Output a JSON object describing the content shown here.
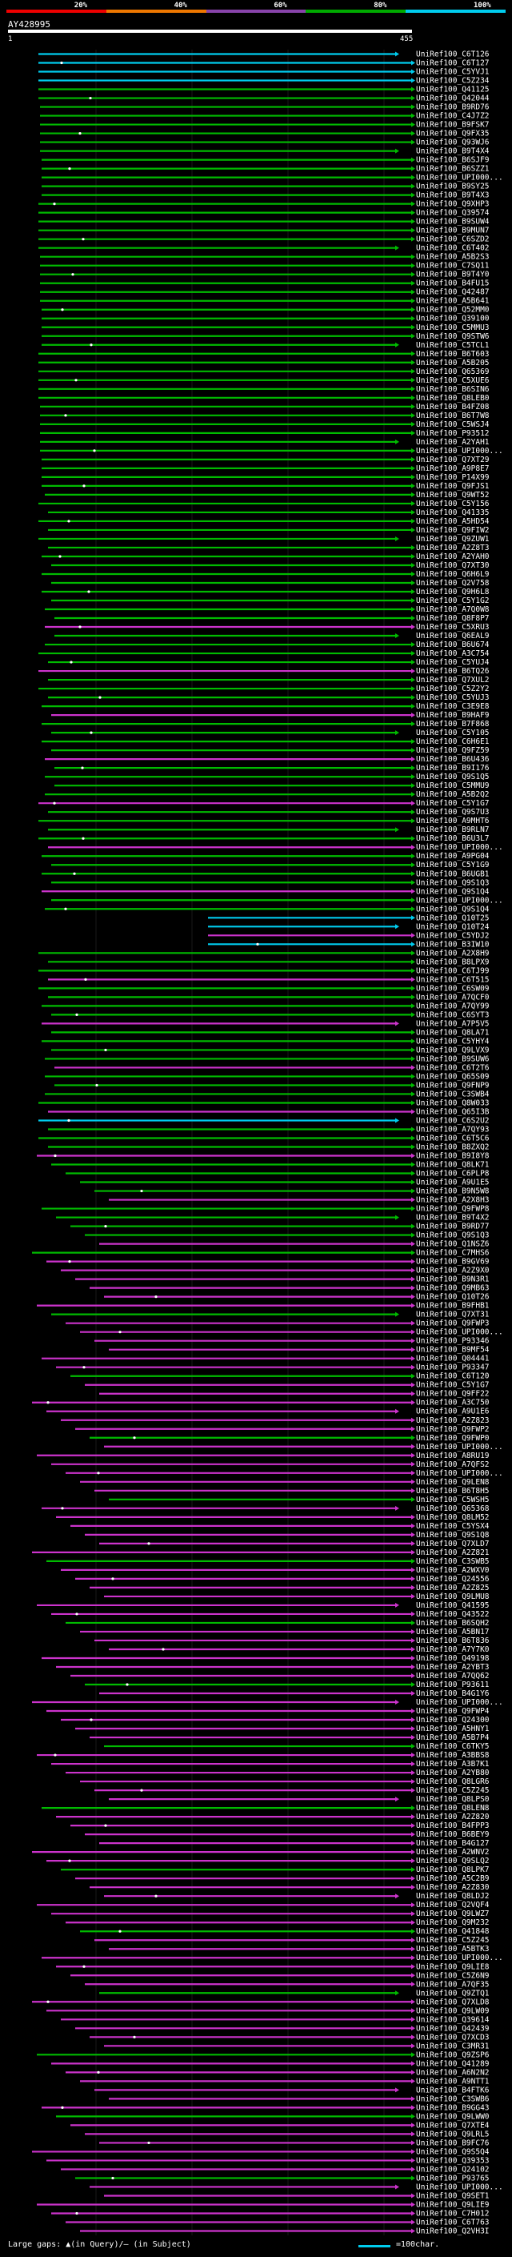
{
  "scale": {
    "labels": [
      "20%",
      "40%",
      "60%",
      "80%",
      "100%"
    ],
    "colors": [
      "#ee0000",
      "#ee7700",
      "#8844aa",
      "#00aa00",
      "#00ccee"
    ]
  },
  "query": {
    "id": "AY428995",
    "start": "1",
    "end": "455"
  },
  "legend": {
    "gaps_text": "Large gaps: ▲(in Query)/— (in Subject)",
    "scale_text": "=100char."
  },
  "colors": {
    "cyan": "#00ccee",
    "green": "#00bb00",
    "purple": "#cc33cc"
  },
  "hits": [
    "UniRef100_C6T126",
    "UniRef100_C6T127",
    "UniRef100_C5YVJ1",
    "UniRef100_C5Z234",
    "UniRef100_Q41125",
    "UniRef100_Q42044",
    "UniRef100_B9RD76",
    "UniRef100_C4J7Z2",
    "UniRef100_B9FSK7",
    "UniRef100_Q9FX35",
    "UniRef100_Q93WJ6",
    "UniRef100_B9T4X4",
    "UniRef100_B6SJF9",
    "UniRef100_B6SZZ1",
    "UniRef100_UPI000...",
    "UniRef100_B9SY25",
    "UniRef100_B9T4X3",
    "UniRef100_Q9XHP3",
    "UniRef100_Q39574",
    "UniRef100_B9SUW4",
    "UniRef100_B9MUN7",
    "UniRef100_C6SZD2",
    "UniRef100_C6T402",
    "UniRef100_A5B2S3",
    "UniRef100_C7SQ11",
    "UniRef100_B9T4Y0",
    "UniRef100_B4FU15",
    "UniRef100_Q42487",
    "UniRef100_A5B641",
    "UniRef100_Q52MM0",
    "UniRef100_Q39100",
    "UniRef100_C5MMU3",
    "UniRef100_Q9STW6",
    "UniRef100_C5TCL1",
    "UniRef100_B6T603",
    "UniRef100_A5B205",
    "UniRef100_Q65369",
    "UniRef100_C5XUE6",
    "UniRef100_B6SIN6",
    "UniRef100_Q8LEB0",
    "UniRef100_B4FZ08",
    "UniRef100_B6T7W8",
    "UniRef100_C5WSJ4",
    "UniRef100_P93512",
    "UniRef100_A2YAH1",
    "UniRef100_UPI000...",
    "UniRef100_Q7XT29",
    "UniRef100_A9P8E7",
    "UniRef100_P14X99",
    "UniRef100_Q9FJS1",
    "UniRef100_Q9WT52",
    "UniRef100_C5Y156",
    "UniRef100_Q41335",
    "UniRef100_A5HD54",
    "UniRef100_Q9FIW2",
    "UniRef100_Q9ZUW1",
    "UniRef100_A2Z8T3",
    "UniRef100_A2YAH0",
    "UniRef100_Q7XT30",
    "UniRef100_Q6H6L9",
    "UniRef100_Q2V758",
    "UniRef100_Q9H6L8",
    "UniRef100_C5Y1G2",
    "UniRef100_A7Q0W8",
    "UniRef100_Q8F8P7",
    "UniRef100_C5XRU3",
    "UniRef100_Q6EAL9",
    "UniRef100_B6U674",
    "UniRef100_A3C754",
    "UniRef100_C5YUJ4",
    "UniRef100_B6TQ26",
    "UniRef100_Q7XUL2",
    "UniRef100_C5Z2Y2",
    "UniRef100_C5YUJ3",
    "UniRef100_C3E9E8",
    "UniRef100_B9HAF9",
    "UniRef100_B7F868",
    "UniRef100_C5Y105",
    "UniRef100_C6H6E1",
    "UniRef100_Q9FZ59",
    "UniRef100_B6U436",
    "UniRef100_B9I176",
    "UniRef100_Q9S1Q5",
    "UniRef100_C5MMU9",
    "UniRef100_A5B2Q2",
    "UniRef100_C5Y1G7",
    "UniRef100_Q9S7U3",
    "UniRef100_A9MHT6",
    "UniRef100_B9RLN7",
    "UniRef100_B6U3L7",
    "UniRef100_UPI000...",
    "UniRef100_A9PG04",
    "UniRef100_C5Y1G9",
    "UniRef100_B6UGB1",
    "UniRef100_Q9S1Q3",
    "UniRef100_Q9S1Q4",
    "UniRef100_UPI000...",
    "UniRef100_Q9S1Q4",
    "UniRef100_Q10T25",
    "UniRef100_Q10T24",
    "UniRef100_C5YDJ2",
    "UniRef100_B3IW10",
    "UniRef100_A2X8H9",
    "UniRef100_B8LPX9",
    "UniRef100_C6TJ99",
    "UniRef100_C6T515",
    "UniRef100_C6SW09",
    "UniRef100_A7QCF0",
    "UniRef100_A7QY99",
    "UniRef100_C6SYT3",
    "UniRef100_A7P5V5",
    "UniRef100_Q8LA71",
    "UniRef100_C5YHY4",
    "UniRef100_Q9LVX9",
    "UniRef100_B9SUW6",
    "UniRef100_C6T2T6",
    "UniRef100_Q65S09",
    "UniRef100_Q9FNP9",
    "UniRef100_C3SWB4",
    "UniRef100_Q8W033",
    "UniRef100_Q65I3B",
    "UniRef100_C6S2U2",
    "UniRef100_A7QY93",
    "UniRef100_C6T5C6",
    "UniRef100_B8ZXQ2",
    "UniRef100_B9I8Y8",
    "UniRef100_Q8LK71",
    "UniRef100_C6PLP8",
    "UniRef100_A9U1E5",
    "UniRef100_B9N5W8",
    "UniRef100_A2X8H3",
    "UniRef100_Q9FWP8",
    "UniRef100_B9T4X2",
    "UniRef100_B9RD77",
    "UniRef100_Q9S1Q3",
    "UniRef100_Q1NSZ6",
    "UniRef100_C7MHS6",
    "UniRef100_B9GV69",
    "UniRef100_A2Z9X0",
    "UniRef100_B9N3R1",
    "UniRef100_Q9MB63",
    "UniRef100_Q10T26",
    "UniRef100_B9FHB1",
    "UniRef100_Q7XT31",
    "UniRef100_Q9FWP3",
    "UniRef100_UPI000...",
    "UniRef100_P93346",
    "UniRef100_B9MF54",
    "UniRef100_Q04441",
    "UniRef100_P93347",
    "UniRef100_C6T120",
    "UniRef100_C5Y1G7",
    "UniRef100_Q9FF22",
    "UniRef100_A3C750",
    "UniRef100_A9U1E6",
    "UniRef100_A2Z823",
    "UniRef100_Q9FWP2",
    "UniRef100_Q9FWP0",
    "UniRef100_UPI000...",
    "UniRef100_A8RU19",
    "UniRef100_A7QFS2",
    "UniRef100_UPI000...",
    "UniRef100_Q9LEN8",
    "UniRef100_B6T8H5",
    "UniRef100_C5WSH5",
    "UniRef100_Q65368",
    "UniRef100_Q8LM52",
    "UniRef100_C5YSX4",
    "UniRef100_Q9S1Q8",
    "UniRef100_Q7XLD7",
    "UniRef100_A2Z821",
    "UniRef100_C3SWB5",
    "UniRef100_A2WXV0",
    "UniRef100_Q24556",
    "UniRef100_A2Z825",
    "UniRef100_Q9LMU8",
    "UniRef100_Q41595",
    "UniRef100_Q43522",
    "UniRef100_B6SQH2",
    "UniRef100_A5BN17",
    "UniRef100_B6T836",
    "UniRef100_A7Y7K0",
    "UniRef100_Q49198",
    "UniRef100_A2YBT3",
    "UniRef100_A7QQ62",
    "UniRef100_P93611",
    "UniRef100_B4G1Y6",
    "UniRef100_UPI000...",
    "UniRef100_Q9FWP4",
    "UniRef100_Q24300",
    "UniRef100_A5HNY1",
    "UniRef100_A5B7P4",
    "UniRef100_C6TKY5",
    "UniRef100_A3BBS8",
    "UniRef100_A3B7K1",
    "UniRef100_A2YB80",
    "UniRef100_Q8LGR6",
    "UniRef100_C5Z245",
    "UniRef100_Q8LPS0",
    "UniRef100_Q8LEN8",
    "UniRef100_A2Z820",
    "UniRef100_B4FPP3",
    "UniRef100_B6BEY9",
    "UniRef100_B4G127",
    "UniRef100_A2WNV2",
    "UniRef100_Q9SLQ2",
    "UniRef100_Q8LPK7",
    "UniRef100_A5C2B9",
    "UniRef100_A2Z830",
    "UniRef100_Q8LDJ2",
    "UniRef100_Q2VQF4",
    "UniRef100_Q9LWZ7",
    "UniRef100_Q9M232",
    "UniRef100_Q41848",
    "UniRef100_C5Z245",
    "UniRef100_A5BTK3",
    "UniRef100_UPI000...",
    "UniRef100_Q9LIE8",
    "UniRef100_C5Z6N9",
    "UniRef100_A7QF35",
    "UniRef100_Q9ZTQ1",
    "UniRef100_Q7XLD8",
    "UniRef100_Q9LW09",
    "UniRef100_Q39614",
    "UniRef100_Q42439",
    "UniRef100_Q7XCD3",
    "UniRef100_C3MR31",
    "UniRef100_Q9ZSP6",
    "UniRef100_Q41289",
    "UniRef100_A6N2N2",
    "UniRef100_A9NTT1",
    "UniRef100_B4FTK6",
    "UniRef100_C3SWB6",
    "UniRef100_B9GG43",
    "UniRef100_Q9LWW0",
    "UniRef100_Q7XTE4",
    "UniRef100_Q9LRL5",
    "UniRef100_B9FC76",
    "UniRef100_Q9S5Q4",
    "UniRef100_Q39353",
    "UniRef100_Q24102",
    "UniRef100_P93765",
    "UniRef100_UPI000...",
    "UniRef100_Q9SET1",
    "UniRef100_Q9LIE9",
    "UniRef100_C7H012",
    "UniRef100_C6T763",
    "UniRef100_Q2VH3I"
  ]
}
